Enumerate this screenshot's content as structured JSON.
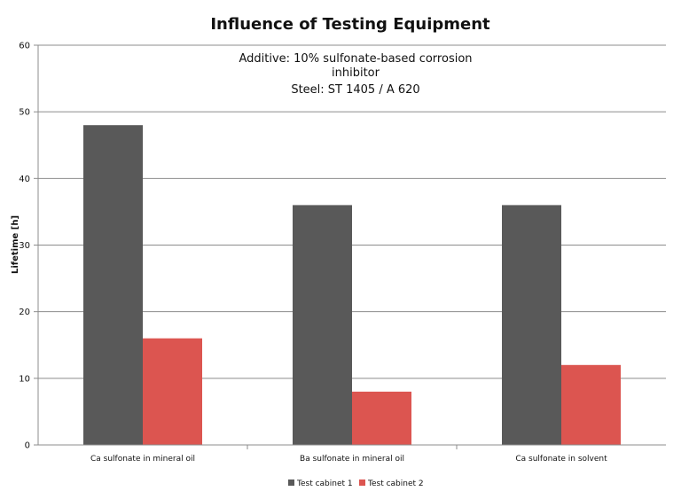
{
  "chart_data": {
    "type": "bar",
    "title": "Influence of Testing Equipment",
    "annotation_lines": [
      "Additive: 10% sulfonate-based corrosion",
      "inhibitor",
      "Steel: ST 1405 / A 620"
    ],
    "xlabel": "",
    "ylabel": "Lifetime [h]",
    "ylim": [
      0,
      60
    ],
    "y_ticks": [
      0,
      10,
      20,
      30,
      40,
      50,
      60
    ],
    "categories": [
      "Ca sulfonate in mineral oil",
      "Ba sulfonate in mineral oil",
      "Ca sulfonate in solvent"
    ],
    "series": [
      {
        "name": "Test cabinet 1",
        "color": "#595959",
        "values": [
          48,
          36,
          36
        ]
      },
      {
        "name": "Test cabinet 2",
        "color": "#dc5550",
        "values": [
          16,
          8,
          12
        ]
      }
    ],
    "grid": true,
    "legend_position": "bottom"
  }
}
